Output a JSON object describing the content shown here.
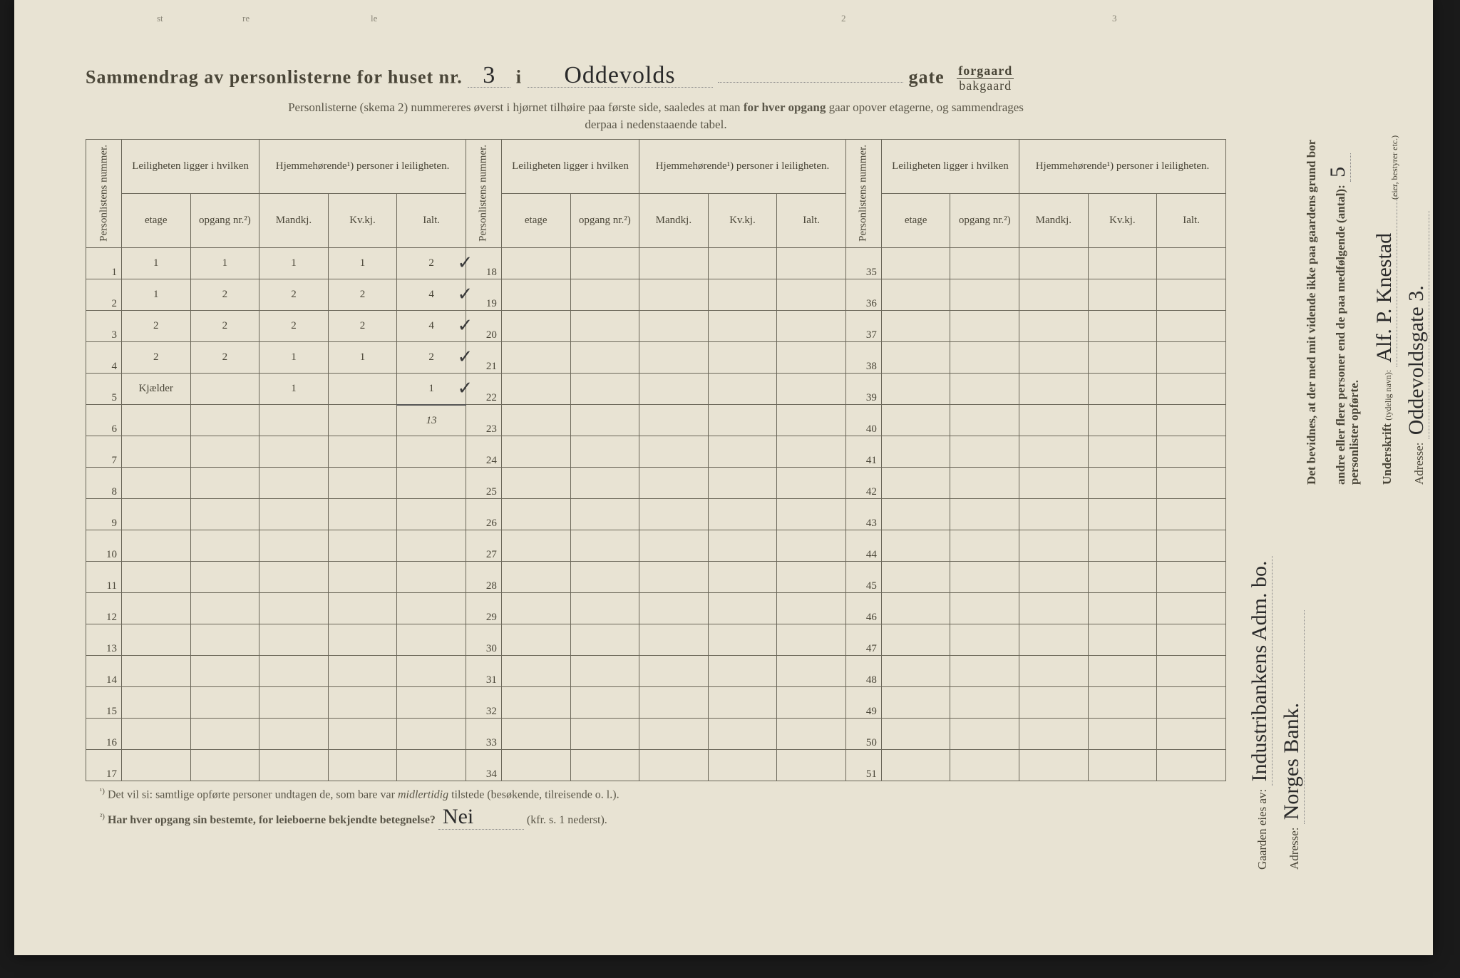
{
  "header": {
    "title_prefix": "Sammendrag av personlisterne for huset nr.",
    "house_nr": "3",
    "i_word": "i",
    "street_name": "Oddevolds",
    "gate_word": "gate",
    "forgaard": "forgaard",
    "bakgaard": "bakgaard",
    "subtitle1": "Personlisterne (skema 2) nummereres øverst i hjørnet tilhøire paa første side, saaledes at man",
    "subtitle1b": "for hver opgang",
    "subtitle1c": "gaar opover etagerne, og sammendrages",
    "subtitle2": "derpaa i nedenstaaende tabel."
  },
  "table": {
    "col_personlistens": "Personlistens nummer.",
    "col_leiligheten": "Leiligheten ligger i hvilken",
    "col_hjemme": "Hjemmehørende¹) personer i leiligheten.",
    "sub_etage": "etage",
    "sub_opgang": "opgang nr.²)",
    "sub_mandkj": "Mandkj.",
    "sub_kvkj": "Kv.kj.",
    "sub_ialt": "Ialt.",
    "blocks": [
      {
        "start": 1,
        "rows": [
          {
            "n": 1,
            "etage": "1",
            "opgang": "1",
            "m": "1",
            "k": "1",
            "i": "2"
          },
          {
            "n": 2,
            "etage": "1",
            "opgang": "2",
            "m": "2",
            "k": "2",
            "i": "4"
          },
          {
            "n": 3,
            "etage": "2",
            "opgang": "2",
            "m": "2",
            "k": "2",
            "i": "4"
          },
          {
            "n": 4,
            "etage": "2",
            "opgang": "2",
            "m": "1",
            "k": "1",
            "i": "2"
          },
          {
            "n": 5,
            "etage": "Kjælder",
            "opgang": "",
            "m": "1",
            "k": "",
            "i": "1"
          },
          {
            "n": 6,
            "etage": "",
            "opgang": "",
            "m": "",
            "k": "",
            "i": "13",
            "total": true
          },
          {
            "n": 7
          },
          {
            "n": 8
          },
          {
            "n": 9
          },
          {
            "n": 10
          },
          {
            "n": 11
          },
          {
            "n": 12
          },
          {
            "n": 13
          },
          {
            "n": 14
          },
          {
            "n": 15
          },
          {
            "n": 16
          },
          {
            "n": 17
          }
        ]
      },
      {
        "start": 18,
        "rows": [
          {
            "n": 18
          },
          {
            "n": 19
          },
          {
            "n": 20
          },
          {
            "n": 21
          },
          {
            "n": 22
          },
          {
            "n": 23
          },
          {
            "n": 24
          },
          {
            "n": 25
          },
          {
            "n": 26
          },
          {
            "n": 27
          },
          {
            "n": 28
          },
          {
            "n": 29
          },
          {
            "n": 30
          },
          {
            "n": 31
          },
          {
            "n": 32
          },
          {
            "n": 33
          },
          {
            "n": 34
          }
        ]
      },
      {
        "start": 35,
        "rows": [
          {
            "n": 35
          },
          {
            "n": 36
          },
          {
            "n": 37
          },
          {
            "n": 38
          },
          {
            "n": 39
          },
          {
            "n": 40
          },
          {
            "n": 41
          },
          {
            "n": 42
          },
          {
            "n": 43
          },
          {
            "n": 44
          },
          {
            "n": 45
          },
          {
            "n": 46
          },
          {
            "n": 47
          },
          {
            "n": 48
          },
          {
            "n": 49
          },
          {
            "n": 50
          },
          {
            "n": 51
          }
        ]
      }
    ],
    "checkmarks": [
      18,
      19,
      20,
      21,
      22
    ]
  },
  "footnotes": {
    "f1_sup": "¹)",
    "f1": "Det vil si: samtlige opførte personer undtagen de, som bare var",
    "f1_i": "midlertidig",
    "f1_b": "tilstede (besøkende, tilreisende o. l.).",
    "f2_sup": "²)",
    "f2": "Har hver opgang sin bestemte, for leieboerne bekjendte betegnelse?",
    "f2_answer": "Nei",
    "f2_c": "(kfr. s. 1 nederst)."
  },
  "right": {
    "owner_label": "Gaarden eies av:",
    "owner_value": "Industribankens Adm. bo.",
    "owner_addr_label": "Adresse:",
    "owner_addr_value": "Norges Bank.",
    "attest1": "Det bevidnes, at der med mit vidende ikke paa gaardens grund bor",
    "attest2a": "andre eller flere personer end de paa medfølgende (antal):",
    "attest2_count": "5",
    "attest3": "personlister opførte.",
    "sign_label": "Underskrift",
    "sign_sub": "(tydelig navn):",
    "sign_value": "Alf. P. Knestad",
    "sign_role": "(eier, bestyrer etc.)",
    "addr_label": "Adresse:",
    "addr_value": "Oddevoldsgate 3."
  },
  "top_fragments": {
    "a": "st",
    "b": "re",
    "c": "le",
    "d": "2",
    "e": "3"
  },
  "colors": {
    "paper": "#e8e3d3",
    "ink_print": "#4a4638",
    "ink_hand": "#2a2a2a",
    "border": "#6a6658"
  }
}
